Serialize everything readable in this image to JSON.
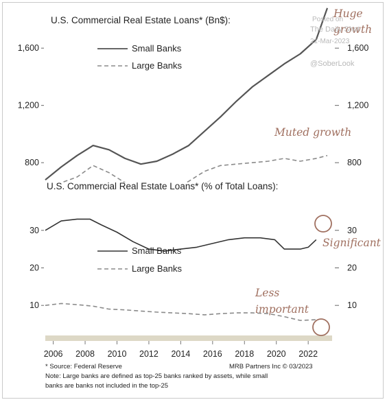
{
  "chart_data": [
    {
      "type": "line",
      "title": "U.S. Commercial Real Estate Loans* (Bn$):",
      "y_ticks": [
        "1,600",
        "1,200",
        "800"
      ],
      "y_tick_values": [
        1600,
        1200,
        800
      ],
      "ylim": [
        700,
        1850
      ],
      "xlim": [
        2005.5,
        2023.5
      ],
      "series": [
        {
          "name": "Small Banks",
          "style": "solid",
          "x": [
            2005.5,
            2006.5,
            2007.5,
            2008.5,
            2009.5,
            2010.5,
            2011.5,
            2012.5,
            2013.5,
            2014.5,
            2015.5,
            2016.5,
            2017.5,
            2018.5,
            2019.5,
            2020.5,
            2021.5,
            2022.5,
            2023.2
          ],
          "values": [
            680,
            770,
            850,
            920,
            890,
            830,
            790,
            810,
            860,
            920,
            1020,
            1120,
            1230,
            1330,
            1410,
            1490,
            1560,
            1660,
            1880
          ]
        },
        {
          "name": "Large Banks",
          "style": "dashed",
          "x": [
            2005.5,
            2006.5,
            2007.5,
            2008.5,
            2009.5,
            2010.5,
            2011.5,
            2012.5,
            2013.5,
            2014.5,
            2015.5,
            2016.5,
            2017.5,
            2018.5,
            2019.5,
            2020.5,
            2021.5,
            2022.5,
            2023.2
          ],
          "values": [
            600,
            660,
            700,
            780,
            730,
            660,
            600,
            590,
            610,
            670,
            740,
            780,
            790,
            800,
            810,
            830,
            810,
            830,
            850
          ]
        }
      ],
      "legend_position": "top-left",
      "annotations": [
        "Huge growth",
        "Muted growth"
      ]
    },
    {
      "type": "line",
      "title": "U.S. Commercial Real Estate Loans* (% of Total Loans):",
      "y_ticks": [
        "30",
        "20",
        "10"
      ],
      "y_tick_values": [
        30,
        20,
        10
      ],
      "ylim": [
        4,
        38
      ],
      "xlim": [
        2005.5,
        2023.5
      ],
      "x_ticks": [
        "2006",
        "2008",
        "2010",
        "2012",
        "2014",
        "2016",
        "2018",
        "2020",
        "2022"
      ],
      "x_tick_values": [
        2006,
        2008,
        2010,
        2012,
        2014,
        2016,
        2018,
        2020,
        2022
      ],
      "series": [
        {
          "name": "Small Banks",
          "style": "solid",
          "x": [
            2005.5,
            2006.5,
            2007.5,
            2008.3,
            2009,
            2010,
            2011,
            2012,
            2013,
            2014,
            2015,
            2016,
            2017,
            2018,
            2019,
            2019.9,
            2020.5,
            2021.5,
            2022,
            2022.5
          ],
          "values": [
            30,
            32.5,
            33,
            33,
            31.5,
            29.5,
            27,
            25,
            24.5,
            25,
            25.5,
            26.5,
            27.5,
            28,
            28,
            27.5,
            25,
            25,
            25.5,
            27.5
          ]
        },
        {
          "name": "Large Banks",
          "style": "dashed",
          "x": [
            2005.5,
            2006.5,
            2007.5,
            2008.5,
            2009.5,
            2010.5,
            2011.5,
            2012.5,
            2013.5,
            2014.5,
            2015.5,
            2016.5,
            2017.5,
            2018.5,
            2019.5,
            2020.5,
            2021.5,
            2022.5
          ],
          "values": [
            10,
            10.5,
            10.2,
            9.8,
            9,
            8.8,
            8.5,
            8.2,
            8,
            7.8,
            7.5,
            7.8,
            8,
            8,
            7.8,
            7,
            6,
            6.2
          ]
        }
      ],
      "legend_position": "center-left",
      "annotations": [
        "Significant",
        "Less important"
      ]
    }
  ],
  "legend": {
    "small": "Small Banks",
    "large": "Large Banks"
  },
  "annotations": {
    "huge1": "Huge",
    "huge2": "growth",
    "muted": "Muted growth",
    "significant": "Significant",
    "less1": "Less",
    "less2": "important"
  },
  "footer": {
    "source": "* Source: Federal Reserve",
    "credit": "MRB Partners Inc © 03/2023",
    "note1": "Note: Large banks are defined as top-25 banks ranked by assets, while small",
    "note2": "banks are banks not included in the top-25"
  },
  "watermark": {
    "posted": "Posted on",
    "site": "The Daily Shot",
    "date": "21-Mar-2023",
    "handle": "@SoberLook"
  },
  "colors": {
    "line": "#333333",
    "dashed": "#8a8a8a",
    "annotation": "#a07060",
    "axis_band": "#ddd8c6"
  }
}
